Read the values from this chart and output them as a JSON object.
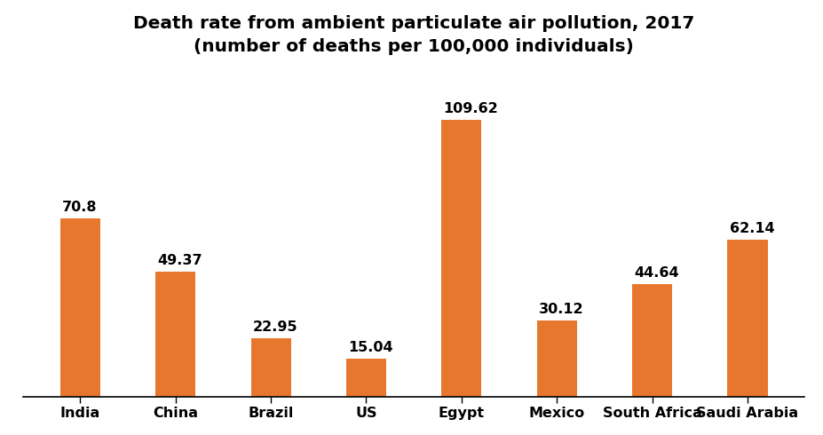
{
  "title": "Death rate from ambient particulate air pollution, 2017\n(number of deaths per 100,000 individuals)",
  "categories": [
    "India",
    "China",
    "Brazil",
    "US",
    "Egypt",
    "Mexico",
    "South Africa",
    "Saudi Arabia"
  ],
  "values": [
    70.8,
    49.37,
    22.95,
    15.04,
    109.62,
    30.12,
    44.64,
    62.14
  ],
  "bar_color": "#E8772E",
  "ylim": [
    0,
    130
  ],
  "background_color": "#ffffff",
  "title_fontsize": 14.5,
  "label_fontsize": 11.5,
  "tick_fontsize": 11.5,
  "bar_width": 0.42
}
